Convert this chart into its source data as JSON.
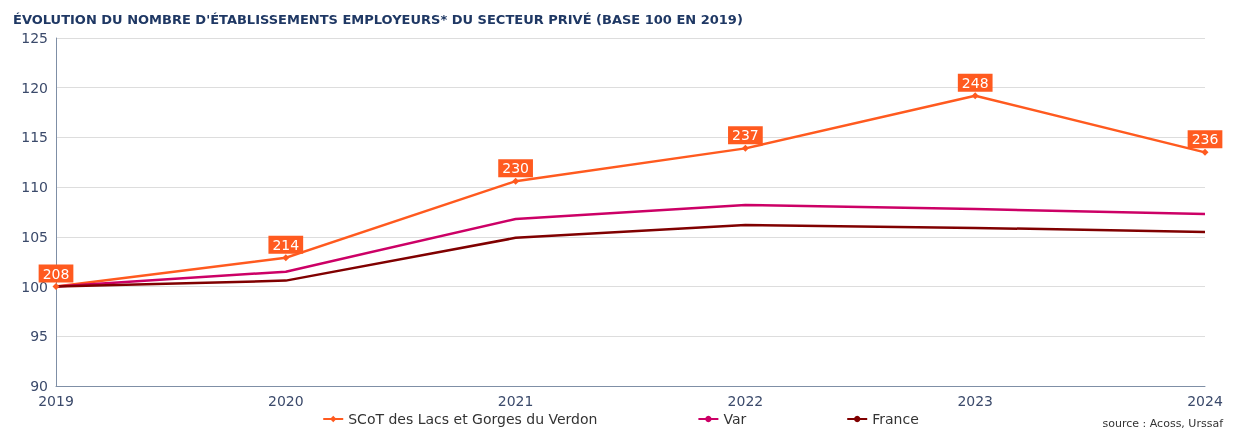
{
  "chart_data": {
    "type": "line",
    "title": "ÉVOLUTION DU NOMBRE D'ÉTABLISSEMENTS EMPLOYEURS* DU SECTEUR PRIVÉ (BASE 100 EN 2019)",
    "annotations": [
      "source : Acoss, Urssaf",
      {
        "text": "208",
        "x": "2019",
        "y": 100
      },
      {
        "text": "214",
        "x": "2020",
        "y": 102.9
      },
      {
        "text": "230",
        "x": "2021",
        "y": 110.6
      },
      {
        "text": "237",
        "x": "2022",
        "y": 113.9
      },
      {
        "text": "248",
        "x": "2023",
        "y": 119.2
      },
      {
        "text": "236",
        "x": "2024",
        "y": 113.5
      }
    ],
    "categories": [
      "2019",
      "2020",
      "2021",
      "2022",
      "2023",
      "2024"
    ],
    "series": [
      {
        "name": "SCoT des Lacs et Gorges du Verdon",
        "color": "#ff5a1f",
        "marker": "diamond",
        "values": [
          100,
          102.9,
          110.6,
          113.9,
          119.2,
          113.5
        ]
      },
      {
        "name": "Var",
        "color": "#cc0066",
        "values": [
          100,
          101.5,
          106.8,
          108.2,
          107.8,
          107.3
        ]
      },
      {
        "name": "France",
        "color": "#800000",
        "values": [
          100,
          100.6,
          104.9,
          106.2,
          105.9,
          105.5
        ]
      }
    ],
    "ylim": [
      90,
      125
    ],
    "yticks": [
      90,
      95,
      100,
      105,
      110,
      115,
      120,
      125
    ],
    "grid": "y",
    "legend": "bottom",
    "line_style": "solid"
  }
}
